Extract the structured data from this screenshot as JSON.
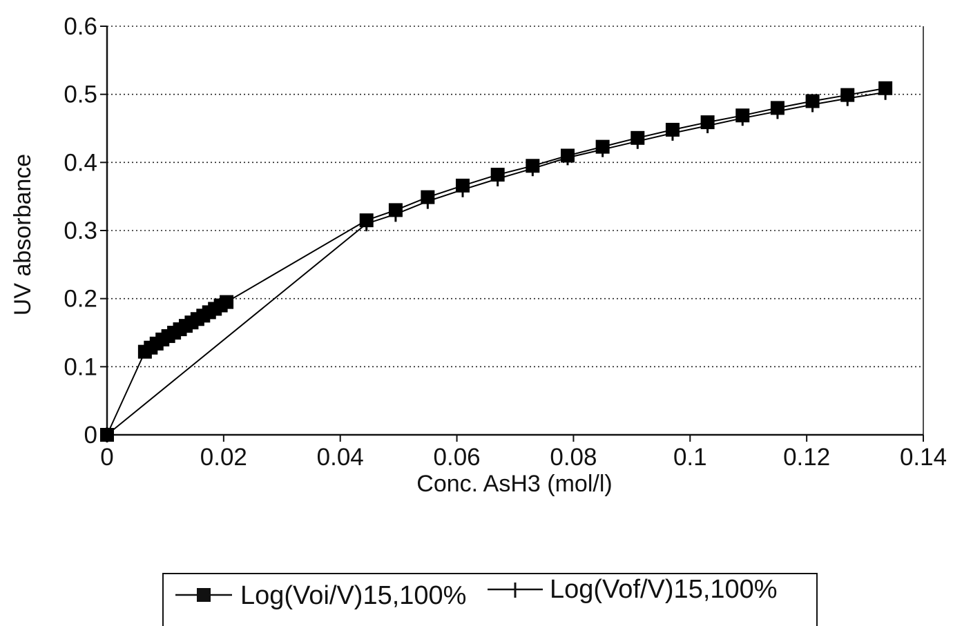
{
  "chart_data": {
    "type": "line",
    "title": "",
    "xlabel": "Conc. AsH3 (mol/l)",
    "ylabel": "UV absorbance",
    "xlim": [
      0,
      0.14
    ],
    "ylim": [
      0,
      0.6
    ],
    "grid": true,
    "grid_axis": "y",
    "legend_position": "bottom",
    "x_ticks": [
      0,
      0.02,
      0.04,
      0.06,
      0.08,
      0.1,
      0.12,
      0.14
    ],
    "x_tick_labels": [
      "0",
      "0.02",
      "0.04",
      "0.06",
      "0.08",
      "0.1",
      "0.12",
      "0.14"
    ],
    "y_ticks": [
      0,
      0.1,
      0.2,
      0.3,
      0.4,
      0.5,
      0.6
    ],
    "y_tick_labels": [
      "0",
      "0.1",
      "0.2",
      "0.3",
      "0.4",
      "0.5",
      "0.6"
    ],
    "series": [
      {
        "name": "Log(Voi/V)15,100%",
        "marker": "square",
        "color": "#000000",
        "x": [
          0,
          0.0065,
          0.0075,
          0.0085,
          0.0095,
          0.0105,
          0.0115,
          0.0125,
          0.0135,
          0.0145,
          0.0155,
          0.0165,
          0.0175,
          0.0185,
          0.0195,
          0.0205,
          0.0445,
          0.0495,
          0.055,
          0.061,
          0.067,
          0.073,
          0.079,
          0.085,
          0.091,
          0.097,
          0.103,
          0.109,
          0.115,
          0.121,
          0.127,
          0.1335
        ],
        "y": [
          0,
          0.122,
          0.128,
          0.134,
          0.14,
          0.145,
          0.15,
          0.155,
          0.16,
          0.165,
          0.17,
          0.175,
          0.18,
          0.185,
          0.19,
          0.195,
          0.315,
          0.33,
          0.349,
          0.366,
          0.382,
          0.395,
          0.41,
          0.423,
          0.436,
          0.448,
          0.459,
          0.469,
          0.48,
          0.49,
          0.499,
          0.509
        ]
      },
      {
        "name": "Log(Vof/V)15,100%",
        "marker": "plus",
        "color": "#000000",
        "x": [
          0,
          0.0445,
          0.0495,
          0.055,
          0.061,
          0.067,
          0.073,
          0.079,
          0.085,
          0.091,
          0.097,
          0.103,
          0.109,
          0.115,
          0.121,
          0.127,
          0.1335
        ],
        "y": [
          0,
          0.31,
          0.324,
          0.343,
          0.36,
          0.376,
          0.391,
          0.407,
          0.419,
          0.431,
          0.443,
          0.454,
          0.465,
          0.475,
          0.485,
          0.494,
          0.503
        ]
      }
    ]
  }
}
